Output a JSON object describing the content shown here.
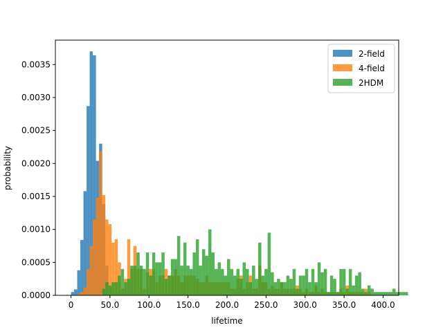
{
  "chart_data": {
    "type": "histogram",
    "title": "",
    "xlabel": "lifetime",
    "ylabel": "probability",
    "xlim": [
      -20,
      420
    ],
    "ylim": [
      0,
      0.00387
    ],
    "xticks": [
      0,
      50,
      100,
      150,
      200,
      250,
      300,
      350,
      400
    ],
    "xtick_labels": [
      "0",
      "50.0",
      "100.0",
      "150.0",
      "200.0",
      "250.0",
      "300.0",
      "350.0",
      "400.0"
    ],
    "yticks": [
      0,
      0.0005,
      0.001,
      0.0015,
      0.002,
      0.0025,
      0.003,
      0.0035
    ],
    "ytick_labels": [
      "0.0000",
      "0.0005",
      "0.0010",
      "0.0015",
      "0.0020",
      "0.0025",
      "0.0030",
      "0.0035"
    ],
    "legend_position": "upper right",
    "bin_width": 4,
    "series": [
      {
        "name": "2-field",
        "color": "#1f77b4",
        "bin_start": 0,
        "values": [
          5e-05,
          9e-05,
          0.00038,
          0.00084,
          0.00158,
          0.00287,
          0.0037,
          0.00364,
          0.00204,
          0.0023,
          0.00138,
          0.00045,
          0.0001
        ]
      },
      {
        "name": "4-field",
        "color": "#ff7f0e",
        "bin_start": 8,
        "values": [
          2e-05,
          5e-05,
          0.00012,
          0.0004,
          0.00075,
          0.00115,
          0.00148,
          0.00218,
          0.00152,
          0.00115,
          0.00108,
          0.0008,
          0.00085,
          0.0005,
          0.0001,
          0.00025,
          0.00085,
          0.0004,
          0.00075,
          0.0004,
          0.0004,
          0.0001,
          0.00035,
          0.0004,
          0.0004,
          0.0002,
          0.0003,
          0.0003,
          0.0004,
          0.0003,
          0.0003,
          0.0004,
          0.0003,
          0.0002,
          0.0003,
          0.0003,
          0.0003,
          0.0003,
          0.00025,
          0.0002,
          0.0002,
          0.0003,
          0.0002,
          0.0002,
          0.0002,
          0.0002,
          0.0002,
          0.0002,
          0.0002,
          0.0001,
          0.0001,
          0.00025,
          0.0003,
          0.0001,
          0.0002,
          0.0003,
          0.0001,
          0.0001,
          0.00045,
          0.0002,
          0.0002,
          0.0001,
          0.00015,
          0.0001,
          0.0001,
          0.0002,
          0.0001,
          0.0001,
          0.0001,
          0.0001,
          0.00015,
          0.0001,
          5e-05,
          0.0001,
          5e-05,
          5e-05,
          0.00015,
          5e-05,
          0.0001,
          5e-05,
          5e-05,
          5e-05,
          5e-05,
          5e-05,
          0.0001,
          5e-05,
          0.00015,
          5e-05,
          5e-05,
          5e-05,
          5e-05,
          5e-05,
          0.0001,
          5e-05
        ]
      },
      {
        "name": "2HDM",
        "color": "#2ca02c",
        "bin_start": 40,
        "values": [
          0.0001,
          0.0002,
          0.00015,
          0.0002,
          0.0002,
          0.0003,
          0.0004,
          0.0002,
          0.00025,
          0.00045,
          0.00045,
          0.00065,
          0.00045,
          0.0004,
          0.00065,
          0.0003,
          0.00065,
          0.0005,
          0.0005,
          0.00065,
          0.00025,
          0.0003,
          0.00055,
          0.00055,
          0.0009,
          0.00045,
          0.0008,
          0.00045,
          0.0004,
          0.00065,
          0.00085,
          0.00045,
          0.0007,
          0.0006,
          0.001,
          0.00065,
          0.0004,
          0.0005,
          0.0004,
          0.0003,
          0.00055,
          0.0004,
          0.0003,
          0.0004,
          0.00025,
          0.0005,
          0.0004,
          0.0002,
          0.00045,
          0.00025,
          0.0008,
          0.0003,
          0.0004,
          0.00095,
          0.00035,
          0.0002,
          0.00025,
          0.0002,
          0.0002,
          0.0003,
          0.00025,
          0.0004,
          0.0001,
          0.0003,
          0.0003,
          0.0004,
          0.0002,
          0.0004,
          0.0002,
          0.0005,
          0.00035,
          0.0004,
          5e-05,
          0.0003,
          0.00025,
          5e-05,
          0.0004,
          0.0004,
          0.0001,
          0.0004,
          0.00015,
          0.0003,
          0.00035,
          0.0001,
          5e-05,
          0.00015,
          0.0001,
          5e-05,
          5e-05,
          5e-05,
          5e-05,
          5e-05,
          5e-05,
          0.0001,
          5e-05,
          5e-05,
          5e-05,
          5e-05
        ]
      }
    ]
  }
}
